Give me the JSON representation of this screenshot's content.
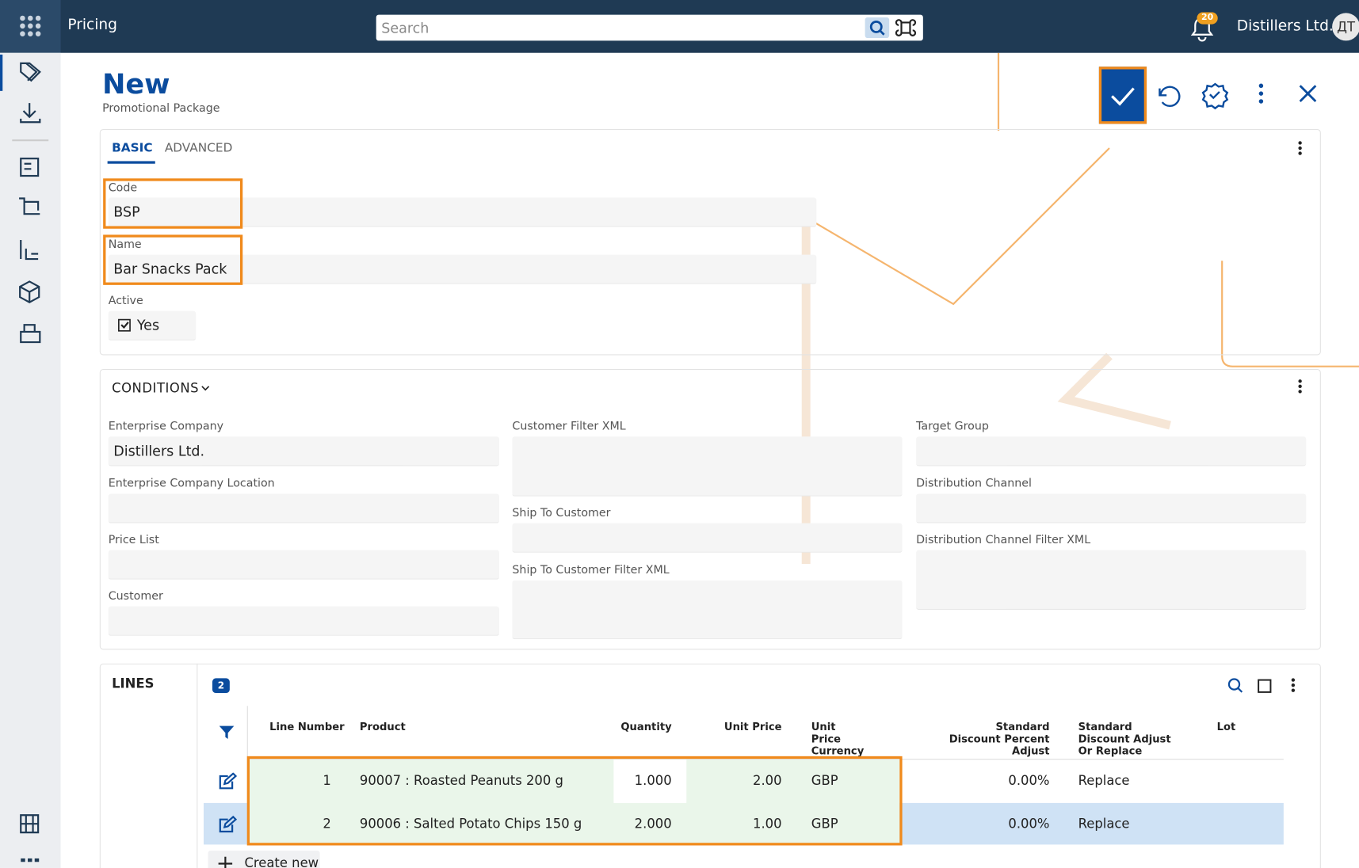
{
  "topbar": {
    "app": "Pricing",
    "search_placeholder": "Search",
    "notifications": "20",
    "company": "Distillers Ltd.",
    "avatar": "ДТ"
  },
  "header": {
    "title": "New",
    "subtitle": "Promotional Package"
  },
  "tabs": [
    "BASIC",
    "ADVANCED"
  ],
  "basic": {
    "code": {
      "label": "Code",
      "value": "BSP"
    },
    "name": {
      "label": "Name",
      "value": "Bar Snacks Pack"
    },
    "active": {
      "label": "Active",
      "value": "Yes"
    }
  },
  "conditions": {
    "title": "CONDITIONS",
    "fields": [
      {
        "label": "Enterprise Company",
        "value": "Distillers Ltd."
      },
      {
        "label": "Enterprise Company Location"
      },
      {
        "label": "Price List"
      },
      {
        "label": "Customer"
      },
      {
        "label": "Customer Filter XML"
      },
      {
        "label": "Ship To Customer"
      },
      {
        "label": "Ship To Customer Filter XML"
      },
      {
        "label": "Target Group"
      },
      {
        "label": "Distribution Channel"
      },
      {
        "label": "Distribution Channel Filter XML"
      }
    ]
  },
  "lines": {
    "title": "LINES",
    "count": "2",
    "columns": [
      "Line Number",
      "Product",
      "Quantity",
      "Unit Price",
      "Unit Price Currency",
      "Standard Discount Percent Adjust",
      "Standard Discount Adjust Or Replace",
      "Lot"
    ],
    "rows": [
      [
        "1",
        "90007 : Roasted Peanuts 200 g",
        "1.000",
        "2.00",
        "GBP",
        "0.00%",
        "Replace"
      ],
      [
        "2",
        "90006 : Salted Potato Chips 150 g",
        "2.000",
        "1.00",
        "GBP",
        "0.00%",
        "Replace"
      ]
    ],
    "create": "Create new"
  }
}
